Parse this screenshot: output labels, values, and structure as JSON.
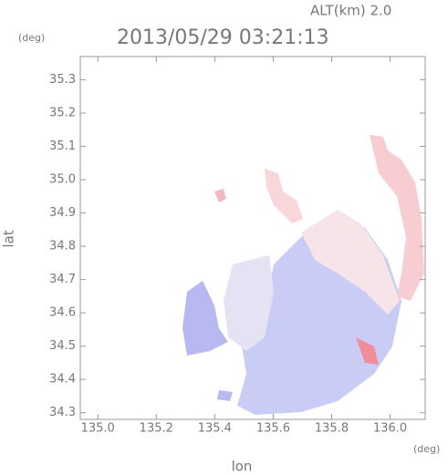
{
  "chart_data": {
    "type": "map",
    "title": "2013/05/29 03:21:13",
    "subtitle": "ALT(km) 2.0",
    "y_unit": "(deg)",
    "x_unit": "(deg)",
    "ylabel": "lat",
    "xlabel": "lon",
    "xlim": [
      134.94,
      136.12
    ],
    "ylim": [
      34.28,
      35.37
    ],
    "xticks": [
      {
        "value": 135.0,
        "label": "135.0"
      },
      135.2,
      135.4,
      135.6,
      135.8,
      {
        "value": 136.0,
        "label": "136.0"
      }
    ],
    "yticks": [
      34.3,
      34.4,
      34.5,
      34.6,
      34.7,
      34.8,
      34.9,
      {
        "value": 35.0,
        "label": "35.0"
      },
      35.1,
      35.2,
      35.3
    ]
  }
}
